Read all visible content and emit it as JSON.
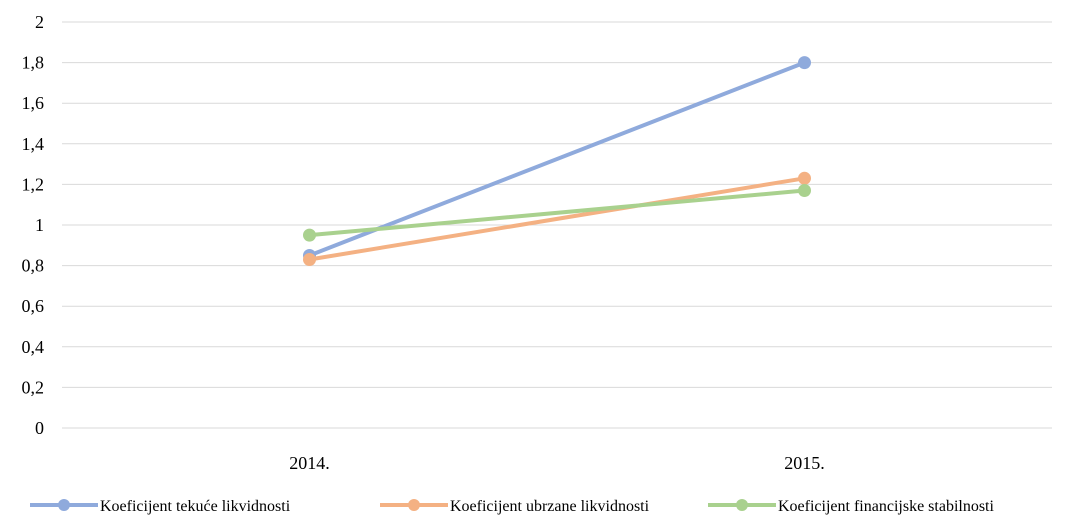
{
  "chart_data": {
    "type": "line",
    "title": "",
    "xlabel": "",
    "ylabel": "",
    "categories": [
      "2014.",
      "2015."
    ],
    "ylim": [
      0,
      2
    ],
    "ytick_values": [
      0,
      0.2,
      0.4,
      0.6,
      0.8,
      1,
      1.2,
      1.4,
      1.6,
      1.8,
      2
    ],
    "ytick_labels": [
      "0",
      "0,2",
      "0,4",
      "0,6",
      "0,8",
      "1",
      "1,2",
      "1,4",
      "1,6",
      "1,8",
      "2"
    ],
    "grid": true,
    "legend_position": "bottom",
    "series": [
      {
        "name": "Koeficijent tekuće likvidnosti",
        "values": [
          0.85,
          1.8
        ],
        "color": "#8faadc"
      },
      {
        "name": "Koeficijent ubrzane likvidnosti",
        "values": [
          0.83,
          1.23
        ],
        "color": "#f4b183"
      },
      {
        "name": "Koeficijent financijske stabilnosti",
        "values": [
          0.95,
          1.17
        ],
        "color": "#a9d18e"
      }
    ]
  }
}
